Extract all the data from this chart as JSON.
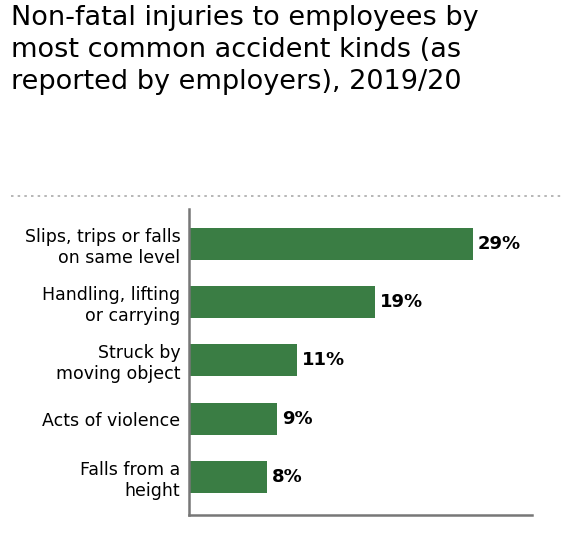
{
  "title": "Non-fatal injuries to employees by\nmost common accident kinds (as\nreported by employers), 2019/20",
  "categories": [
    "Falls from a\nheight",
    "Acts of violence",
    "Struck by\nmoving object",
    "Handling, lifting\nor carrying",
    "Slips, trips or falls\non same level"
  ],
  "values": [
    8,
    9,
    11,
    19,
    29
  ],
  "labels": [
    "8%",
    "9%",
    "11%",
    "19%",
    "29%"
  ],
  "bar_color": "#3a7d44",
  "background_color": "#ffffff",
  "title_fontsize": 19.5,
  "label_fontsize": 13,
  "category_fontsize": 12.5,
  "xlim": [
    0,
    35
  ],
  "dotted_line_color": "#aaaaaa",
  "spine_color": "#777777"
}
